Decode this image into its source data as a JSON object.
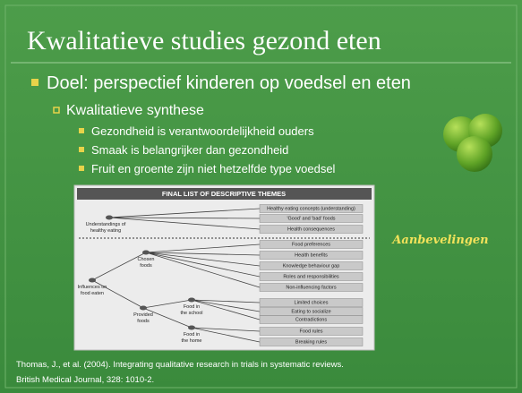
{
  "header": {
    "title": "Kwalitatieve studies gezond eten"
  },
  "bullets": {
    "main": "Doel: perspectief kinderen op voedsel en eten",
    "sub": "Kwalitatieve synthese",
    "points": [
      "Gezondheid is verantwoordelijkheid ouders",
      "Smaak is belangrijker dan gezondheid",
      "Fruit en groente zijn niet hetzelfde type voedsel"
    ]
  },
  "figure": {
    "title": "FINAL LIST OF DESCRIPTIVE THEMES",
    "nodes": [
      {
        "lines": [
          "Understandings of",
          "healthy eating"
        ]
      },
      {
        "lines": [
          "Chosen",
          "foods"
        ]
      },
      {
        "lines": [
          "Influences on",
          "food eaten"
        ]
      },
      {
        "lines": [
          "Food in",
          "the school"
        ]
      },
      {
        "lines": [
          "Provided",
          "foods"
        ]
      },
      {
        "lines": [
          "Food in",
          "the home"
        ]
      }
    ],
    "themes": [
      "Healthy eating concepts (understanding)",
      "'Good' and 'bad' foods",
      "Health consequences",
      "Food preferences",
      "Health benefits",
      "Knowledge behaviour gap",
      "Roles and responsibilities",
      "Non-influencing factors",
      "Limited choices",
      "Eating to socialize",
      "Contradictions",
      "Food rules",
      "Breaking rules"
    ]
  },
  "note": "Aanbevelingen",
  "citation": [
    "Thomas, J., et al. (2004). Integrating qualitative research in trials in systematic reviews.",
    "British Medical Journal, 328: 1010-2."
  ]
}
